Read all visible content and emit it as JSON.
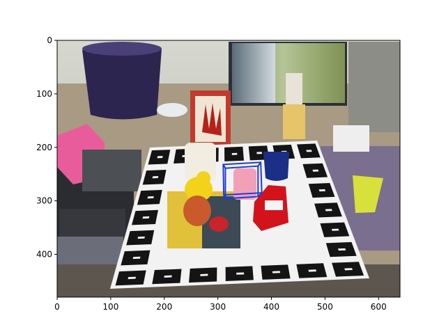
{
  "figure": {
    "x_ticks": [
      0,
      100,
      200,
      300,
      400,
      500,
      600
    ],
    "y_ticks": [
      0,
      100,
      200,
      300,
      400
    ],
    "x_range": [
      0,
      640
    ],
    "y_range": [
      480,
      0
    ],
    "image_description": "Tabletop scene photo: a board of black-and-white fiducial marker squares on a table holding toys and objects (red toy car, yellow rubber duck, pink figure, blue mug, watering can, red plush, magazine), with a flower pot, a monitor showing a waterfall wallpaper, a pink box, a yellow cup and cables around it.",
    "overlay_box": {
      "color": "#1f3bd6",
      "front_face": [
        [
          314,
          239
        ],
        [
          375,
          235
        ],
        [
          375,
          292
        ],
        [
          314,
          296
        ]
      ],
      "back_face": [
        [
          310,
          232
        ],
        [
          380,
          228
        ],
        [
          382,
          285
        ],
        [
          311,
          289
        ]
      ]
    },
    "colors": {
      "axis": "#000000",
      "board_white": "#f2f2f2",
      "marker_black": "#141414",
      "wall": "#c9cdc4",
      "table": "#a89a83"
    }
  }
}
